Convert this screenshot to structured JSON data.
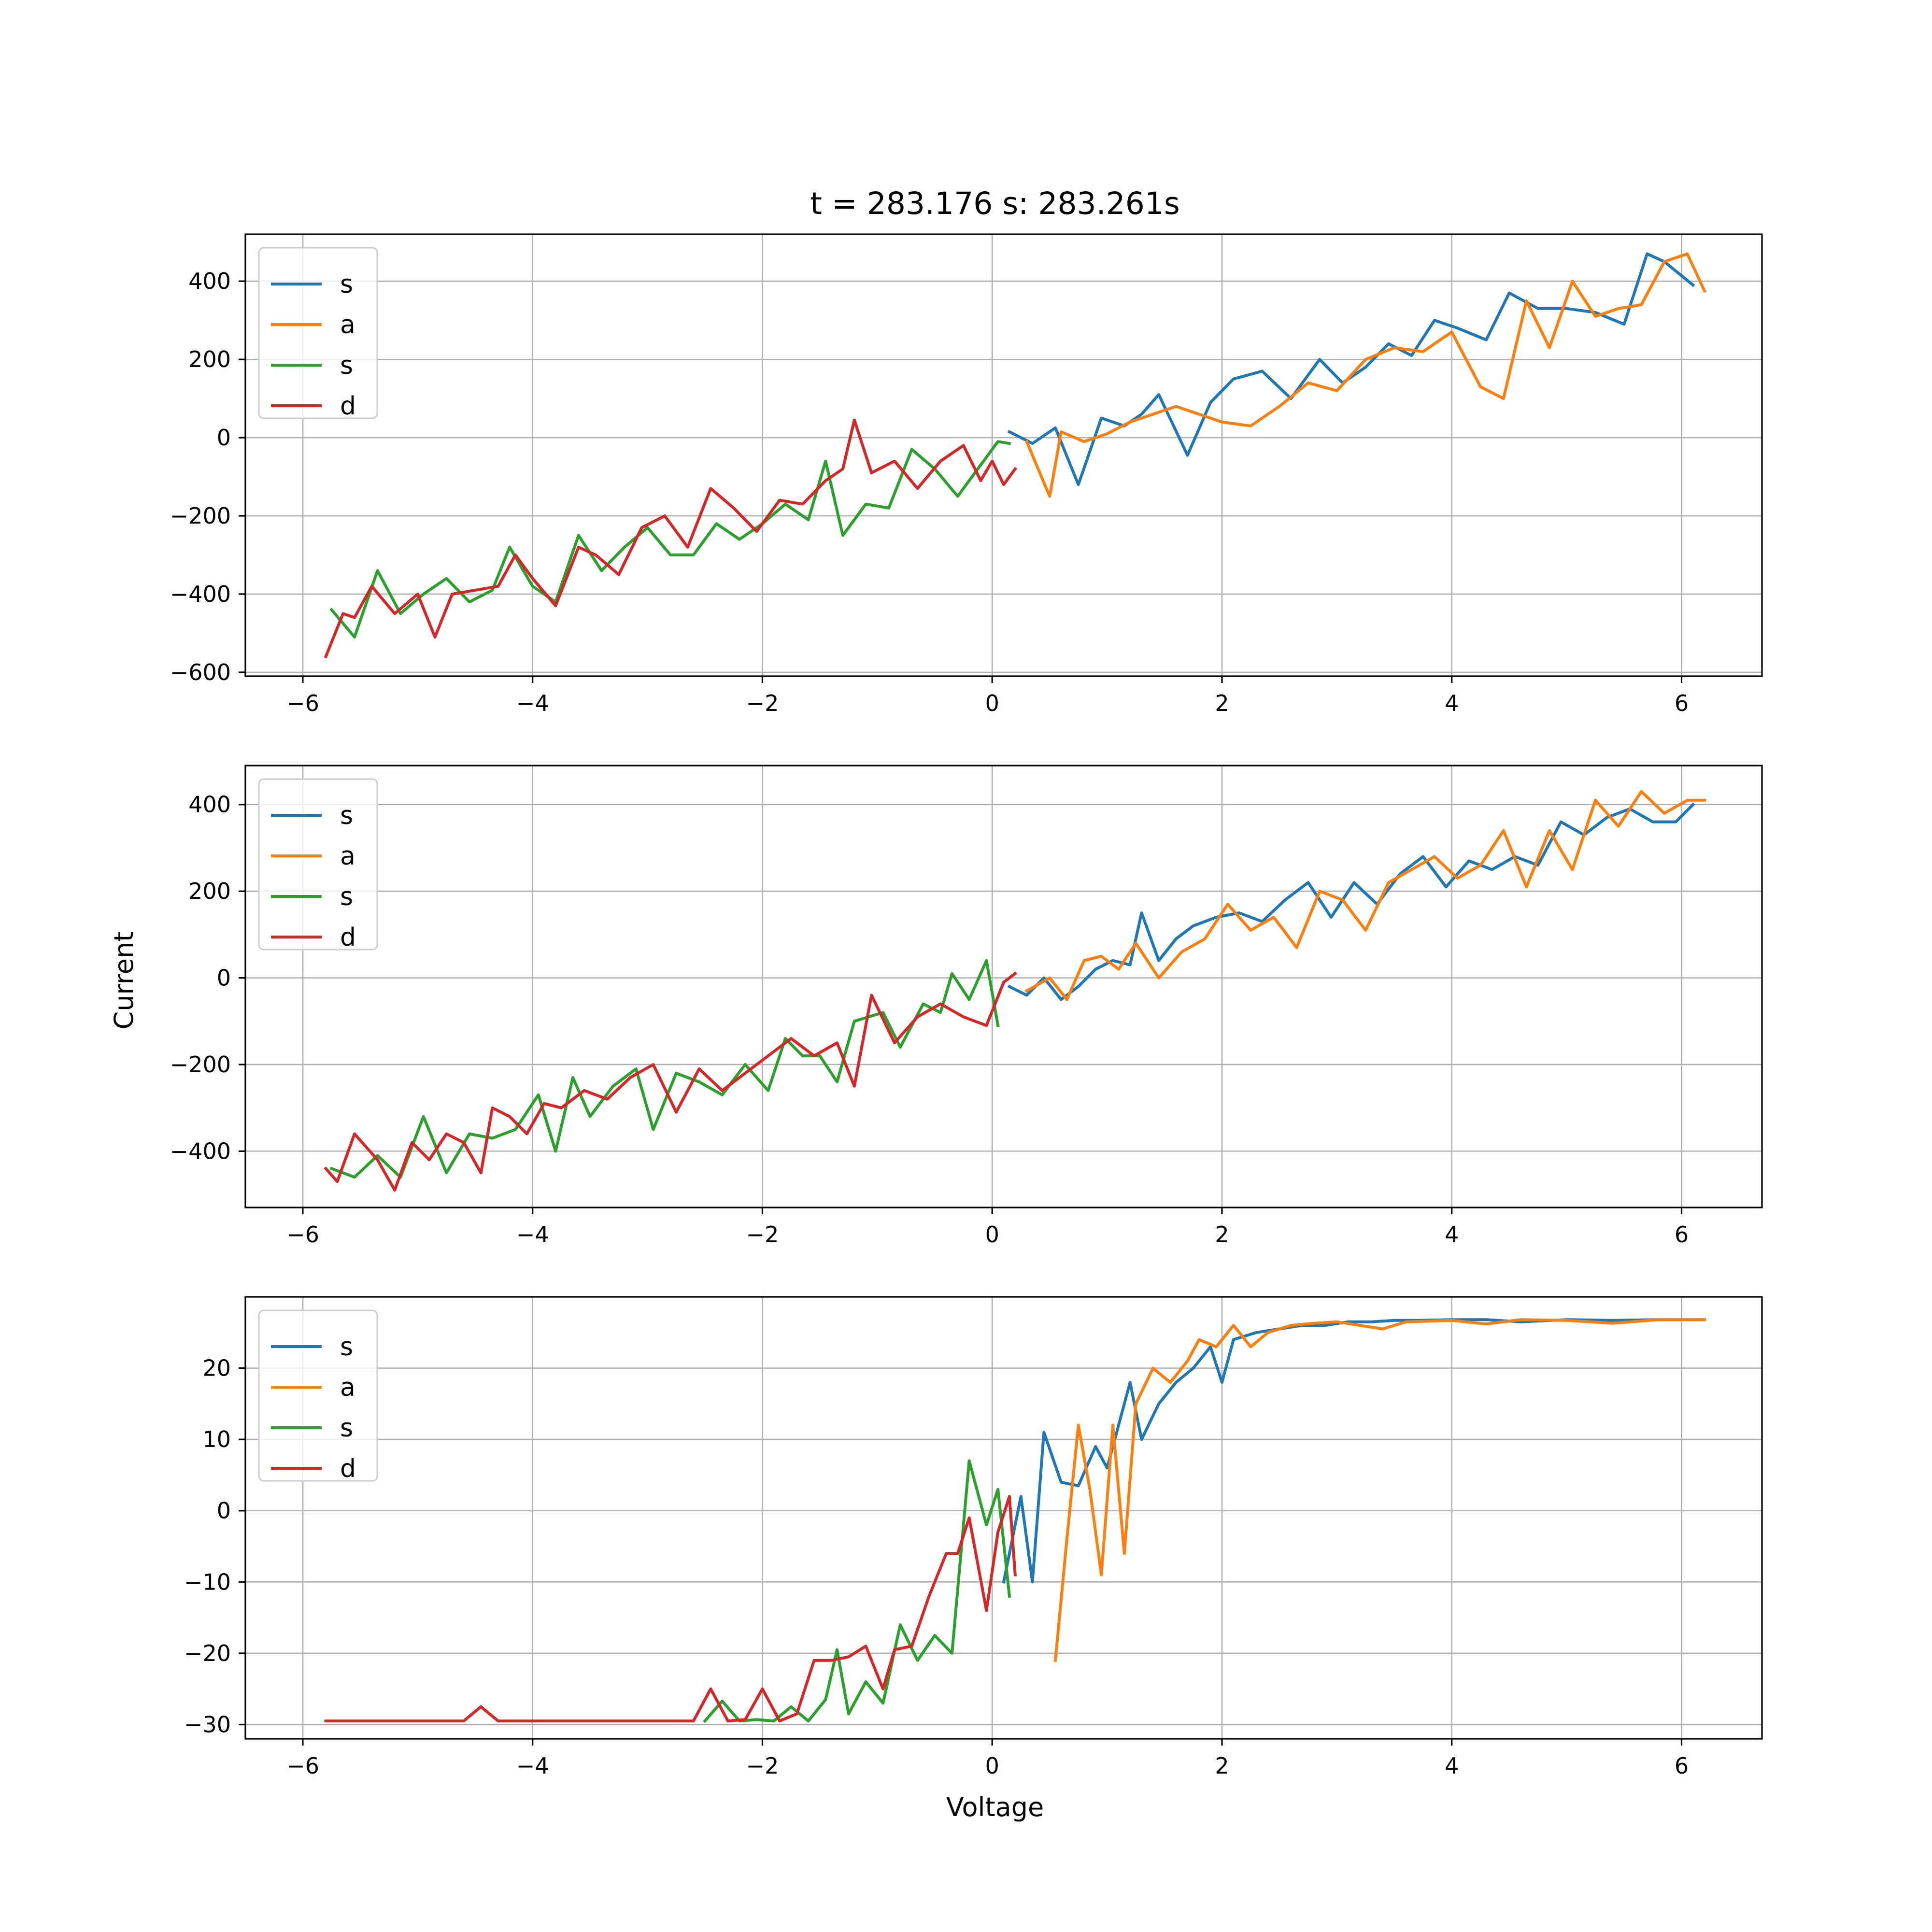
{
  "figure": {
    "title": "t = 283.176 s: 283.261s",
    "xlabel": "Voltage",
    "ylabel": "Current"
  },
  "colors": {
    "s_forward": "#1f77b4",
    "a": "#ff7f0e",
    "s_reverse": "#2ca02c",
    "d": "#d62728"
  },
  "chart_data": [
    {
      "type": "line",
      "title": "t = 283.176 s: 283.261s",
      "xlabel": "",
      "ylabel": "",
      "xlim": [
        -6.5,
        6.7
      ],
      "ylim": [
        -610,
        520
      ],
      "xticks": [
        -6,
        -4,
        -2,
        0,
        2,
        4,
        6
      ],
      "xtick_labels": [
        "−6",
        "−4",
        "−2",
        "0",
        "2",
        "4",
        "6"
      ],
      "yticks": [
        -600,
        -400,
        -200,
        0,
        200,
        400
      ],
      "ytick_labels": [
        "−600",
        "−400",
        "−200",
        "0",
        "200",
        "400"
      ],
      "grid": true,
      "legend": "upper left",
      "series": [
        {
          "name": "s",
          "color": "#1f77b4",
          "x": [
            0.15,
            0.35,
            0.55,
            0.75,
            0.95,
            1.15,
            1.3,
            1.45,
            1.7,
            1.9,
            2.1,
            2.35,
            2.6,
            2.85,
            3.05,
            3.25,
            3.45,
            3.65,
            3.85,
            4.05,
            4.3,
            4.5,
            4.75,
            5.0,
            5.25,
            5.5,
            5.7,
            5.85,
            6.1
          ],
          "y": [
            15,
            -15,
            25,
            -120,
            50,
            30,
            60,
            110,
            -45,
            90,
            150,
            170,
            100,
            200,
            140,
            180,
            240,
            210,
            300,
            280,
            250,
            370,
            330,
            330,
            320,
            290,
            470,
            450,
            390
          ]
        },
        {
          "name": "a",
          "color": "#ff7f0e",
          "x": [
            0.3,
            0.5,
            0.6,
            0.8,
            1.0,
            1.2,
            1.4,
            1.6,
            1.8,
            2.0,
            2.25,
            2.5,
            2.75,
            3.0,
            3.25,
            3.5,
            3.75,
            4.0,
            4.25,
            4.45,
            4.65,
            4.85,
            5.05,
            5.25,
            5.45,
            5.65,
            5.85,
            6.05,
            6.2
          ],
          "y": [
            -10,
            -150,
            15,
            -10,
            10,
            40,
            60,
            80,
            60,
            40,
            30,
            80,
            140,
            120,
            200,
            230,
            220,
            270,
            130,
            100,
            350,
            230,
            400,
            310,
            330,
            340,
            450,
            470,
            375
          ]
        },
        {
          "name": "s",
          "color": "#2ca02c",
          "x": [
            -5.75,
            -5.55,
            -5.35,
            -5.15,
            -4.95,
            -4.75,
            -4.55,
            -4.35,
            -4.2,
            -4.0,
            -3.8,
            -3.6,
            -3.4,
            -3.2,
            -3.0,
            -2.8,
            -2.6,
            -2.4,
            -2.2,
            -2.0,
            -1.8,
            -1.6,
            -1.45,
            -1.3,
            -1.1,
            -0.9,
            -0.7,
            -0.5,
            -0.3,
            -0.1,
            0.05,
            0.15
          ],
          "y": [
            -440,
            -510,
            -340,
            -450,
            -400,
            -360,
            -420,
            -390,
            -280,
            -380,
            -420,
            -250,
            -340,
            -280,
            -230,
            -300,
            -300,
            -220,
            -260,
            -220,
            -170,
            -210,
            -60,
            -250,
            -170,
            -180,
            -30,
            -80,
            -150,
            -70,
            -10,
            -15
          ]
        },
        {
          "name": "d",
          "color": "#d62728",
          "x": [
            -5.8,
            -5.65,
            -5.55,
            -5.4,
            -5.2,
            -5.0,
            -4.85,
            -4.7,
            -4.5,
            -4.3,
            -4.15,
            -4.0,
            -3.8,
            -3.6,
            -3.45,
            -3.25,
            -3.05,
            -2.85,
            -2.65,
            -2.45,
            -2.25,
            -2.05,
            -1.85,
            -1.65,
            -1.45,
            -1.3,
            -1.2,
            -1.05,
            -0.85,
            -0.65,
            -0.45,
            -0.25,
            -0.1,
            0.0,
            0.1,
            0.2
          ],
          "y": [
            -560,
            -450,
            -460,
            -380,
            -450,
            -400,
            -510,
            -400,
            -390,
            -380,
            -300,
            -360,
            -430,
            -280,
            -300,
            -350,
            -230,
            -200,
            -280,
            -130,
            -180,
            -240,
            -160,
            -170,
            -110,
            -80,
            45,
            -90,
            -60,
            -130,
            -60,
            -20,
            -110,
            -60,
            -120,
            -80
          ]
        }
      ]
    },
    {
      "type": "line",
      "title": "",
      "xlabel": "",
      "ylabel": "Current",
      "xlim": [
        -6.5,
        6.7
      ],
      "ylim": [
        -530,
        490
      ],
      "xticks": [
        -6,
        -4,
        -2,
        0,
        2,
        4,
        6
      ],
      "xtick_labels": [
        "−6",
        "−4",
        "−2",
        "0",
        "2",
        "4",
        "6"
      ],
      "yticks": [
        -400,
        -200,
        0,
        200,
        400
      ],
      "ytick_labels": [
        "−400",
        "−200",
        "0",
        "200",
        "400"
      ],
      "grid": true,
      "legend": "upper left",
      "series": [
        {
          "name": "s",
          "color": "#1f77b4",
          "x": [
            0.15,
            0.3,
            0.45,
            0.6,
            0.75,
            0.9,
            1.05,
            1.2,
            1.3,
            1.45,
            1.6,
            1.75,
            1.95,
            2.15,
            2.35,
            2.55,
            2.75,
            2.95,
            3.15,
            3.35,
            3.55,
            3.75,
            3.95,
            4.15,
            4.35,
            4.55,
            4.75,
            4.95,
            5.15,
            5.35,
            5.55,
            5.75,
            5.95,
            6.1
          ],
          "y": [
            -20,
            -40,
            0,
            -50,
            -20,
            20,
            40,
            30,
            150,
            40,
            90,
            120,
            140,
            150,
            130,
            180,
            220,
            140,
            220,
            170,
            240,
            280,
            210,
            270,
            250,
            280,
            260,
            360,
            330,
            370,
            390,
            360,
            360,
            400
          ]
        },
        {
          "name": "a",
          "color": "#ff7f0e",
          "x": [
            0.3,
            0.5,
            0.65,
            0.8,
            0.95,
            1.1,
            1.25,
            1.45,
            1.65,
            1.85,
            2.05,
            2.25,
            2.45,
            2.65,
            2.85,
            3.05,
            3.25,
            3.45,
            3.65,
            3.85,
            4.05,
            4.25,
            4.45,
            4.65,
            4.85,
            5.05,
            5.25,
            5.45,
            5.65,
            5.85,
            6.05,
            6.2
          ],
          "y": [
            -30,
            0,
            -50,
            40,
            50,
            20,
            80,
            0,
            60,
            90,
            170,
            110,
            140,
            70,
            200,
            180,
            110,
            220,
            250,
            280,
            230,
            260,
            340,
            210,
            340,
            250,
            410,
            350,
            430,
            380,
            410,
            410
          ]
        },
        {
          "name": "s",
          "color": "#2ca02c",
          "x": [
            -5.75,
            -5.55,
            -5.35,
            -5.15,
            -4.95,
            -4.75,
            -4.55,
            -4.35,
            -4.15,
            -3.95,
            -3.8,
            -3.65,
            -3.5,
            -3.3,
            -3.1,
            -2.95,
            -2.75,
            -2.55,
            -2.35,
            -2.15,
            -1.95,
            -1.8,
            -1.65,
            -1.5,
            -1.35,
            -1.2,
            -0.95,
            -0.8,
            -0.6,
            -0.45,
            -0.35,
            -0.2,
            -0.05,
            0.05
          ],
          "y": [
            -440,
            -460,
            -410,
            -460,
            -320,
            -450,
            -360,
            -370,
            -350,
            -270,
            -400,
            -230,
            -320,
            -250,
            -210,
            -350,
            -220,
            -240,
            -270,
            -200,
            -260,
            -140,
            -180,
            -180,
            -240,
            -100,
            -80,
            -160,
            -60,
            -80,
            10,
            -50,
            40,
            -110
          ]
        },
        {
          "name": "d",
          "color": "#d62728",
          "x": [
            -5.8,
            -5.7,
            -5.55,
            -5.35,
            -5.2,
            -5.05,
            -4.9,
            -4.75,
            -4.6,
            -4.45,
            -4.35,
            -4.2,
            -4.05,
            -3.9,
            -3.75,
            -3.55,
            -3.35,
            -3.15,
            -2.95,
            -2.75,
            -2.55,
            -2.35,
            -2.15,
            -1.95,
            -1.75,
            -1.55,
            -1.35,
            -1.2,
            -1.05,
            -0.85,
            -0.65,
            -0.45,
            -0.25,
            -0.05,
            0.1,
            0.2
          ],
          "y": [
            -440,
            -470,
            -360,
            -420,
            -490,
            -380,
            -420,
            -360,
            -380,
            -450,
            -300,
            -320,
            -360,
            -290,
            -300,
            -260,
            -280,
            -230,
            -200,
            -310,
            -210,
            -260,
            -220,
            -180,
            -140,
            -180,
            -150,
            -250,
            -40,
            -150,
            -90,
            -60,
            -90,
            -110,
            -10,
            10
          ]
        }
      ]
    },
    {
      "type": "line",
      "title": "",
      "xlabel": "Voltage",
      "ylabel": "",
      "xlim": [
        -6.5,
        6.7
      ],
      "ylim": [
        -32,
        30
      ],
      "xticks": [
        -6,
        -4,
        -2,
        0,
        2,
        4,
        6
      ],
      "xtick_labels": [
        "−6",
        "−4",
        "−2",
        "0",
        "2",
        "4",
        "6"
      ],
      "yticks": [
        -30,
        -20,
        -10,
        0,
        10,
        20
      ],
      "ytick_labels": [
        "−30",
        "−20",
        "−10",
        "0",
        "10",
        "20"
      ],
      "grid": true,
      "legend": "upper left",
      "series": [
        {
          "name": "s",
          "color": "#1f77b4",
          "x": [
            0.1,
            0.25,
            0.35,
            0.45,
            0.6,
            0.75,
            0.9,
            1.0,
            1.1,
            1.2,
            1.3,
            1.45,
            1.6,
            1.75,
            1.9,
            2.0,
            2.1,
            2.3,
            2.5,
            2.7,
            2.9,
            3.1,
            3.3,
            3.5,
            3.7,
            4.0,
            4.3,
            4.6,
            5.0,
            5.4,
            5.8,
            6.2
          ],
          "y": [
            -10,
            2,
            -10,
            11,
            4,
            3.5,
            9,
            6,
            12,
            18,
            10,
            15,
            18,
            20,
            23,
            18,
            24,
            25,
            25.5,
            26,
            26,
            26.5,
            26.5,
            26.7,
            26.7,
            26.8,
            26.8,
            26.5,
            26.8,
            26.7,
            26.8,
            26.8
          ]
        },
        {
          "name": "a",
          "color": "#ff7f0e",
          "x": [
            0.55,
            0.65,
            0.75,
            0.85,
            0.95,
            1.05,
            1.15,
            1.25,
            1.4,
            1.55,
            1.7,
            1.8,
            1.95,
            2.1,
            2.25,
            2.4,
            2.6,
            2.8,
            3.0,
            3.2,
            3.4,
            3.6,
            3.8,
            4.0,
            4.3,
            4.6,
            5.0,
            5.4,
            5.8,
            6.2
          ],
          "y": [
            -21,
            -4,
            12,
            3,
            -9,
            12,
            -6,
            15,
            20,
            18,
            21,
            24,
            23,
            26,
            23,
            25,
            26,
            26.3,
            26.5,
            26,
            25.5,
            26.5,
            26.6,
            26.7,
            26.2,
            26.8,
            26.7,
            26.3,
            26.8,
            26.8
          ]
        },
        {
          "name": "s",
          "color": "#2ca02c",
          "x": [
            -2.5,
            -2.35,
            -2.2,
            -2.05,
            -1.9,
            -1.75,
            -1.6,
            -1.45,
            -1.35,
            -1.25,
            -1.1,
            -0.95,
            -0.8,
            -0.65,
            -0.5,
            -0.35,
            -0.2,
            -0.05,
            0.05,
            0.15
          ],
          "y": [
            -29.5,
            -26.7,
            -29.5,
            -29.3,
            -29.5,
            -27.5,
            -29.5,
            -26.5,
            -19.5,
            -28.5,
            -24,
            -27,
            -16,
            -21,
            -17.5,
            -20,
            7,
            -2,
            3,
            -12
          ]
        },
        {
          "name": "d",
          "color": "#d62728",
          "x": [
            -5.8,
            -5.3,
            -4.8,
            -4.6,
            -4.45,
            -4.3,
            -3.8,
            -3.3,
            -2.8,
            -2.6,
            -2.45,
            -2.3,
            -2.15,
            -2.0,
            -1.85,
            -1.7,
            -1.55,
            -1.4,
            -1.25,
            -1.1,
            -0.95,
            -0.85,
            -0.7,
            -0.55,
            -0.4,
            -0.3,
            -0.2,
            -0.05,
            0.05,
            0.15,
            0.2
          ],
          "y": [
            -29.5,
            -29.5,
            -29.5,
            -29.5,
            -27.5,
            -29.5,
            -29.5,
            -29.5,
            -29.5,
            -29.5,
            -25,
            -29.5,
            -29.3,
            -25,
            -29.5,
            -28.5,
            -21,
            -21,
            -20.5,
            -19,
            -25,
            -19.5,
            -19,
            -12,
            -6,
            -6,
            -1,
            -14,
            -3,
            2,
            -9
          ]
        }
      ]
    }
  ]
}
